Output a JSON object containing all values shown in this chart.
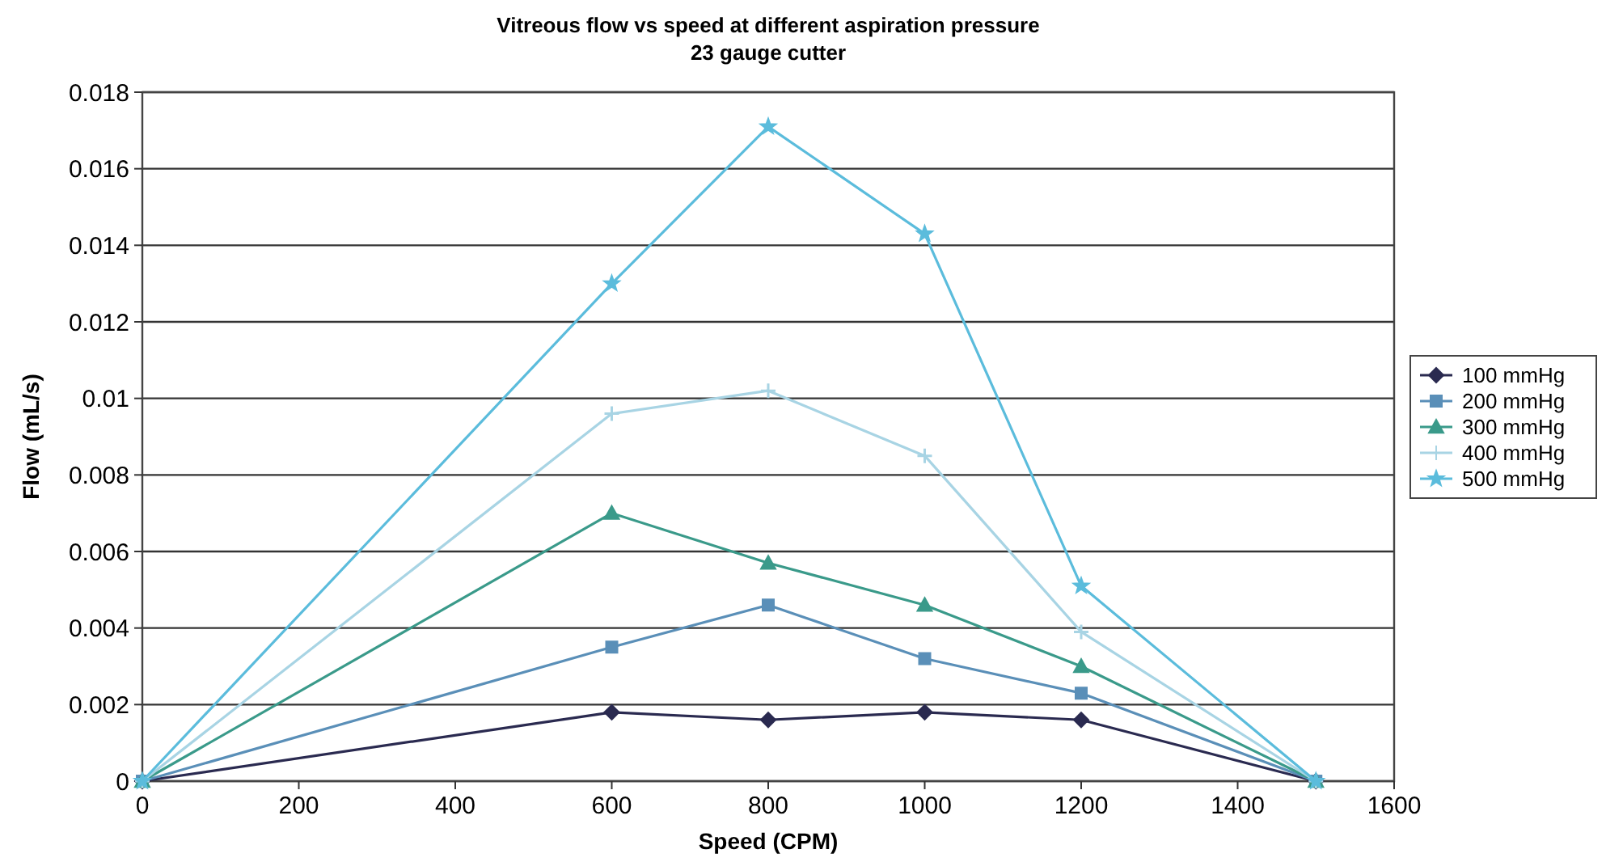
{
  "chart_data": {
    "type": "line",
    "title": "Vitreous flow vs speed at different aspiration pressure",
    "subtitle": "23 gauge cutter",
    "xlabel": "Speed (CPM)",
    "ylabel": "Flow (mL/s)",
    "x": [
      0,
      600,
      800,
      1000,
      1200,
      1500
    ],
    "series": [
      {
        "name": "100 mmHg",
        "color": "#2a2a50",
        "marker": "diamond",
        "values": [
          0,
          0.0018,
          0.0016,
          0.0018,
          0.0016,
          0
        ]
      },
      {
        "name": "200 mmHg",
        "color": "#5a8fb8",
        "marker": "square",
        "values": [
          0,
          0.0035,
          0.0046,
          0.0032,
          0.0023,
          0
        ]
      },
      {
        "name": "300 mmHg",
        "color": "#3a9a8a",
        "marker": "triangle",
        "values": [
          0,
          0.007,
          0.0057,
          0.0046,
          0.003,
          0
        ]
      },
      {
        "name": "400 mmHg",
        "color": "#a8d4e4",
        "marker": "cross",
        "values": [
          0,
          0.0096,
          0.0102,
          0.0085,
          0.0039,
          0
        ]
      },
      {
        "name": "500 mmHg",
        "color": "#5bbcdc",
        "marker": "star",
        "values": [
          0,
          0.013,
          0.0171,
          0.0143,
          0.0051,
          0
        ]
      }
    ],
    "xlim": [
      0,
      1600
    ],
    "xticks": [
      0,
      200,
      400,
      600,
      800,
      1000,
      1200,
      1400,
      1600
    ],
    "ylim": [
      0,
      0.018
    ],
    "yticks": [
      0,
      {
        "value": 0.002,
        "label": "0.002"
      },
      {
        "value": 0.004,
        "label": "0.004"
      },
      {
        "value": 0.006,
        "label": "0.006"
      },
      {
        "value": 0.008,
        "label": "0.008"
      },
      {
        "value": 0.01,
        "label": "0.01"
      },
      {
        "value": 0.012,
        "label": "0.012"
      },
      {
        "value": 0.014,
        "label": "0.014"
      },
      {
        "value": 0.016,
        "label": "0.016"
      },
      {
        "value": 0.018,
        "label": "0.018"
      }
    ],
    "grid": "y",
    "legend": "right",
    "line_style": "solid"
  }
}
